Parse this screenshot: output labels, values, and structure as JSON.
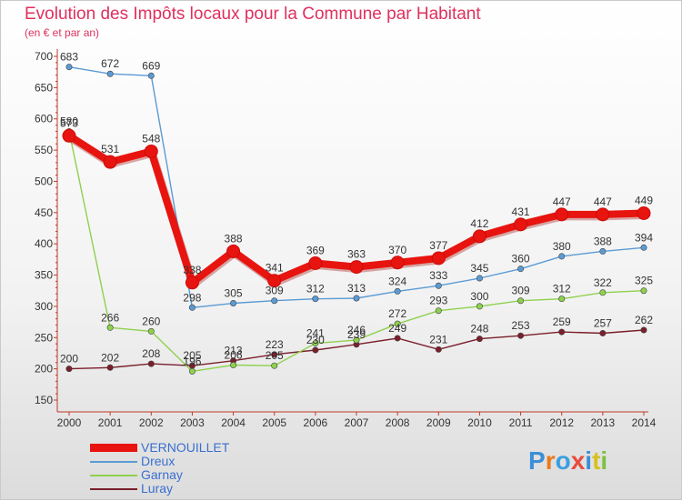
{
  "title": "Evolution des Impôts locaux pour la Commune par Habitant",
  "subtitle": "(en € et par an)",
  "logo": "Proxiti",
  "colors": {
    "title": "#e0305e",
    "axis": "#c0392b",
    "legend_text": "#3a6fcf"
  },
  "chart_data": {
    "type": "line",
    "x": [
      "2000",
      "2001",
      "2002",
      "2003",
      "2004",
      "2005",
      "2006",
      "2007",
      "2008",
      "2009",
      "2010",
      "2011",
      "2012",
      "2013",
      "2014"
    ],
    "ylim": [
      150,
      700
    ],
    "yticks": [
      150,
      200,
      250,
      300,
      350,
      400,
      450,
      500,
      550,
      600,
      650,
      700
    ],
    "grid": false,
    "legend_position": "bottom-left",
    "series": [
      {
        "name": "VERNOUILLET",
        "color": "#e8140f",
        "values": [
          573,
          531,
          548,
          338,
          388,
          341,
          369,
          363,
          370,
          377,
          412,
          431,
          447,
          447,
          449
        ],
        "labels": [
          "573",
          "531",
          "548",
          "338",
          "388",
          "341",
          "369",
          "363",
          "370",
          "377",
          "412",
          "431",
          "447",
          "447",
          "449"
        ]
      },
      {
        "name": "Dreux",
        "color": "#5b9bd5",
        "values": [
          683,
          672,
          669,
          298,
          305,
          309,
          312,
          313,
          324,
          333,
          345,
          360,
          380,
          388,
          394
        ],
        "labels": [
          "683",
          "672",
          "669",
          "298",
          "305",
          "309",
          "312",
          "313",
          "324",
          "333",
          "345",
          "360",
          "380",
          "388",
          "394"
        ]
      },
      {
        "name": "Garnay",
        "color": "#8fd14f",
        "values": [
          580,
          266,
          260,
          196,
          206,
          205,
          241,
          246,
          272,
          293,
          300,
          309,
          312,
          322,
          325
        ],
        "labels": [
          "580",
          "266",
          "260",
          "196",
          "206",
          "205",
          "241",
          "246",
          "272",
          "293",
          "300",
          "309",
          "312",
          "322",
          "325"
        ]
      },
      {
        "name": "Luray",
        "color": "#7a1f2b",
        "values": [
          200,
          202,
          208,
          205,
          213,
          223,
          230,
          239,
          249,
          231,
          248,
          253,
          259,
          257,
          262
        ],
        "labels": [
          "200",
          "202",
          "208",
          "205",
          "213",
          "223",
          "230",
          "239",
          "249",
          "231",
          "248",
          "253",
          "259",
          "257",
          "262"
        ]
      }
    ]
  }
}
